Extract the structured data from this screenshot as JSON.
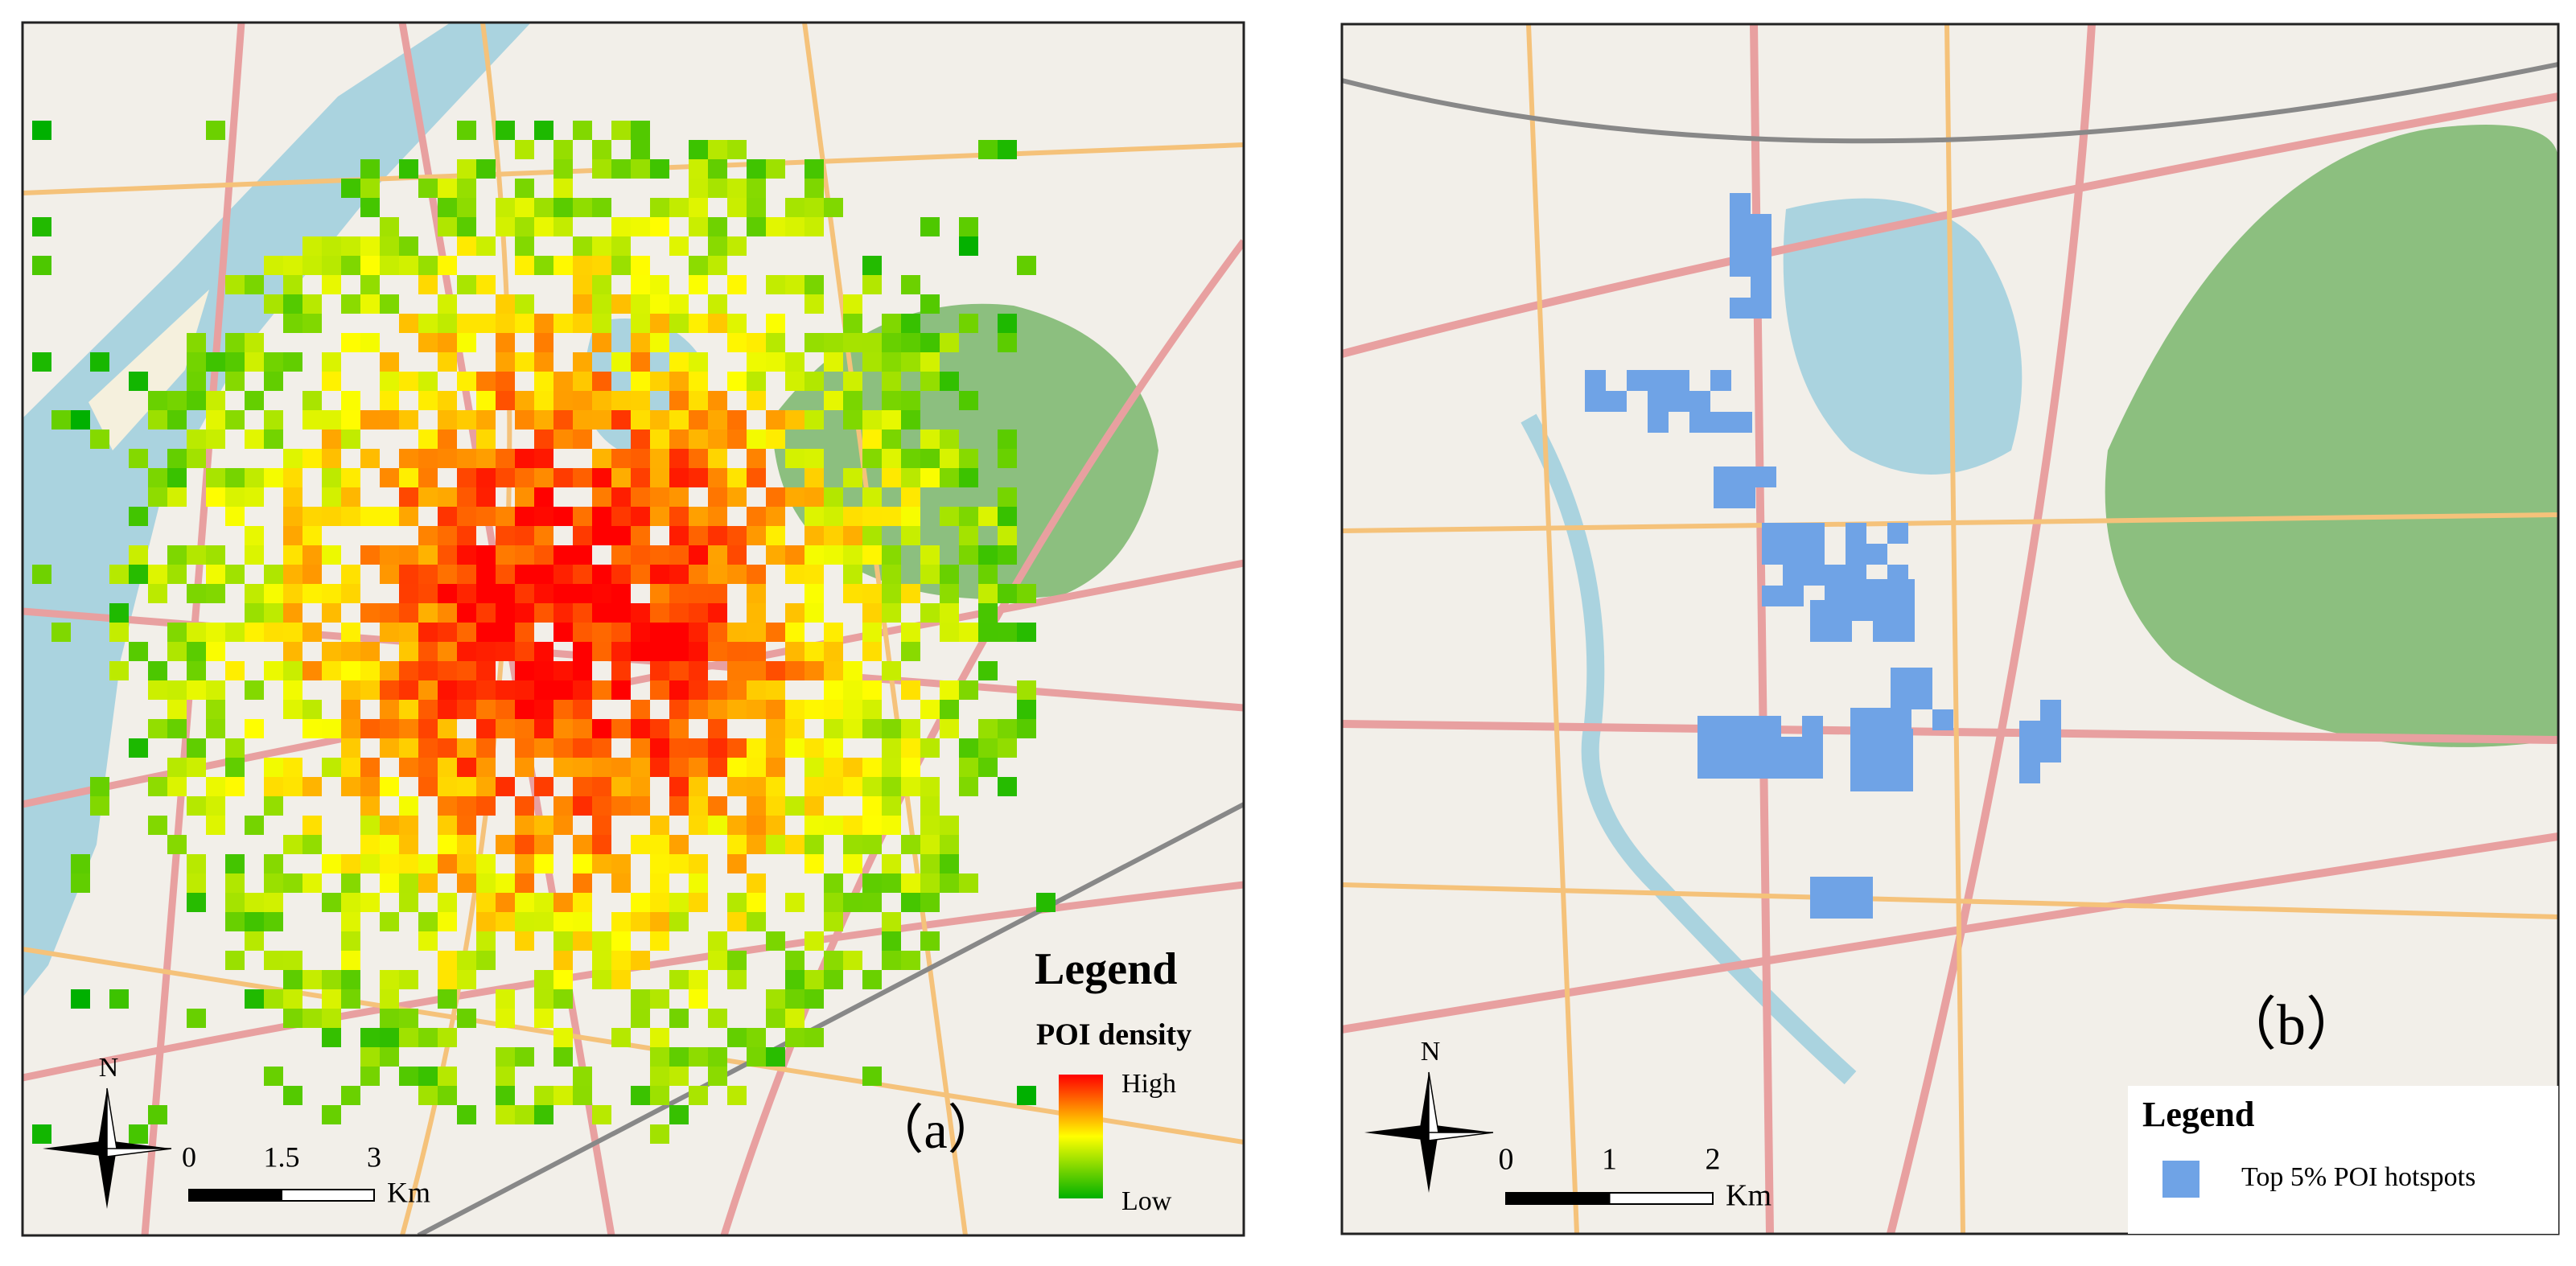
{
  "panels": [
    {
      "label": "（a）",
      "legend": {
        "title": "Legend",
        "subtitle": "POI density",
        "high": "High",
        "low": "Low"
      },
      "scale_bar": {
        "ticks": [
          0,
          1.5,
          3
        ],
        "unit": "Km"
      },
      "north": "N"
    },
    {
      "label": "（b）",
      "legend": {
        "title": "Legend",
        "items": [
          "Top 5% POI hotspots"
        ]
      },
      "scale_bar": {
        "ticks": [
          0,
          1,
          2
        ],
        "unit": "Km"
      },
      "north": "N"
    }
  ]
}
